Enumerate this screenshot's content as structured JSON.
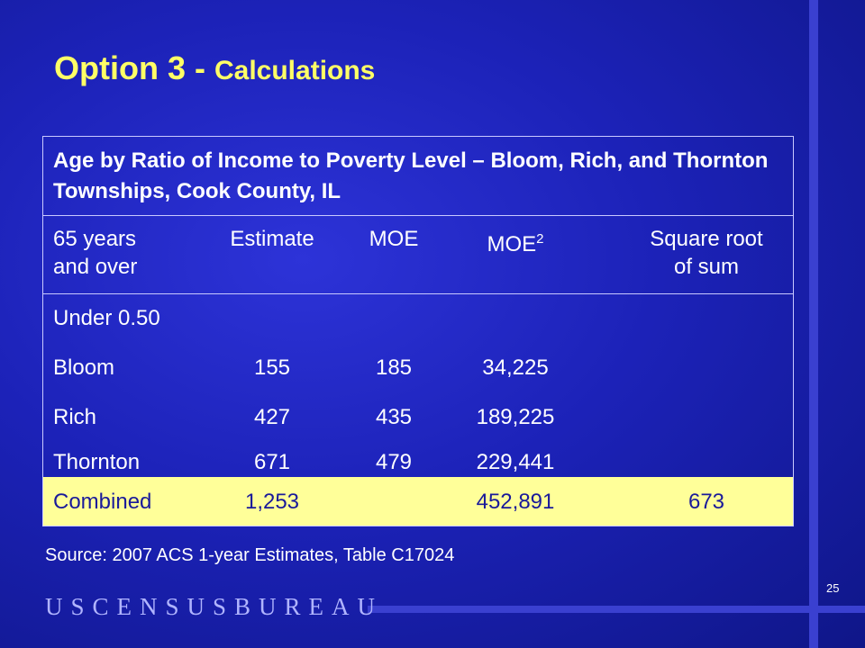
{
  "slide": {
    "title_main": "Option 3 - ",
    "title_sub": "Calculations",
    "page_number": "25",
    "source": "Source:  2007 ACS 1-year Estimates, Table C17024",
    "brand": "USCENSUSBUREAU"
  },
  "table": {
    "caption": "Age by Ratio of Income to Poverty Level – Bloom, Rich, and Thornton Townships, Cook County, IL",
    "headers": {
      "group_line1": "65 years",
      "group_line2": "and over",
      "estimate": "Estimate",
      "moe": "MOE",
      "moe2_base": "MOE",
      "moe2_sup": "2",
      "sqrt_line1": "Square root",
      "sqrt_line2": "of sum"
    },
    "section_label": "Under 0.50",
    "rows": [
      {
        "name": "Bloom",
        "estimate": "155",
        "moe": "185",
        "moe2": "34,225",
        "sqrt": ""
      },
      {
        "name": "Rich",
        "estimate": "427",
        "moe": "435",
        "moe2": "189,225",
        "sqrt": ""
      },
      {
        "name": "Thornton",
        "estimate": "671",
        "moe": "479",
        "moe2": "229,441",
        "sqrt": ""
      }
    ],
    "combined": {
      "name": "Combined",
      "estimate": "1,253",
      "moe": "",
      "moe2": "452,891",
      "sqrt": "673"
    }
  },
  "colors": {
    "background": "#1c22b8",
    "title": "#ffff66",
    "combined_row": "#ffff99",
    "combined_text": "#1a1a9a"
  }
}
